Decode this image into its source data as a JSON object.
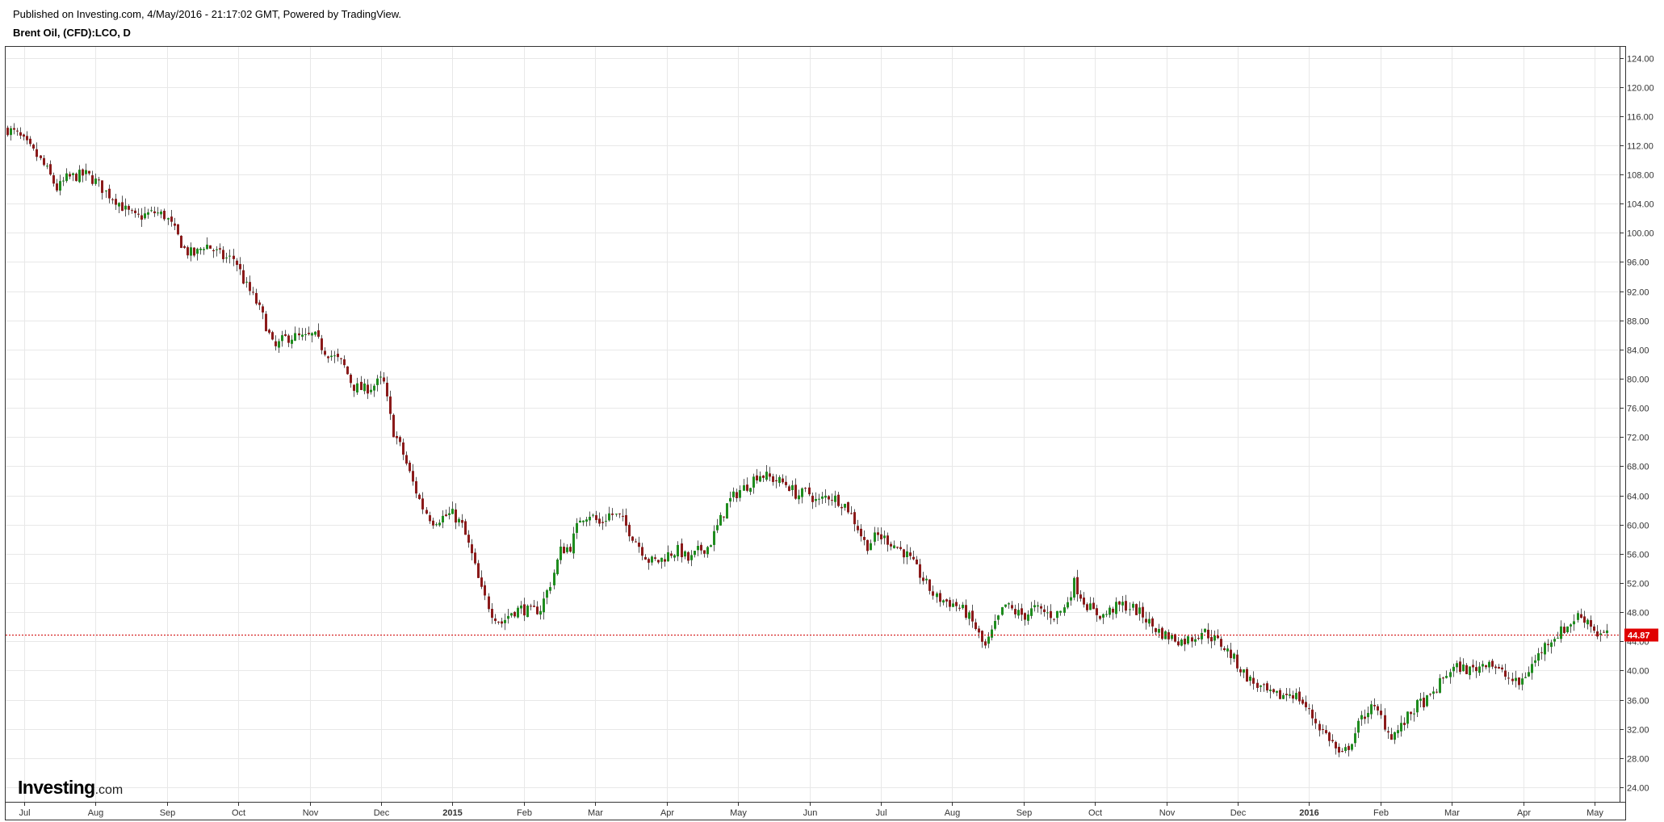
{
  "header": {
    "published": "Published on Investing.com, 4/May/2016 - 21:17:02 GMT, Powered by TradingView.",
    "symbol": "Brent Oil, (CFD):LCO, D"
  },
  "logo": {
    "main": "Investing",
    "suffix": ".com"
  },
  "colors": {
    "up": "#1e8c1e",
    "down": "#8b1a1a",
    "wick": "#555555",
    "last_line": "#d00000",
    "grid": "#e8e8e8"
  },
  "chart_data": {
    "type": "candlestick",
    "title": "Brent Oil, (CFD):LCO, D",
    "ylim": [
      22,
      125.5
    ],
    "y_ticks": [
      "124.00",
      "120.00",
      "116.00",
      "112.00",
      "108.00",
      "104.00",
      "100.00",
      "96.00",
      "92.00",
      "88.00",
      "84.00",
      "80.00",
      "76.00",
      "72.00",
      "68.00",
      "64.00",
      "60.00",
      "56.00",
      "52.00",
      "48.00",
      "44.00",
      "40.00",
      "36.00",
      "32.00",
      "28.00",
      "24.00"
    ],
    "x_ticks": [
      {
        "label": "Jul",
        "bold": false
      },
      {
        "label": "Aug",
        "bold": false
      },
      {
        "label": "Sep",
        "bold": false
      },
      {
        "label": "Oct",
        "bold": false
      },
      {
        "label": "Nov",
        "bold": false
      },
      {
        "label": "Dec",
        "bold": false
      },
      {
        "label": "2015",
        "bold": true
      },
      {
        "label": "Feb",
        "bold": false
      },
      {
        "label": "Mar",
        "bold": false
      },
      {
        "label": "Apr",
        "bold": false
      },
      {
        "label": "May",
        "bold": false
      },
      {
        "label": "Jun",
        "bold": false
      },
      {
        "label": "Jul",
        "bold": false
      },
      {
        "label": "Aug",
        "bold": false
      },
      {
        "label": "Sep",
        "bold": false
      },
      {
        "label": "Oct",
        "bold": false
      },
      {
        "label": "Nov",
        "bold": false
      },
      {
        "label": "Dec",
        "bold": false
      },
      {
        "label": "2016",
        "bold": true
      },
      {
        "label": "Feb",
        "bold": false
      },
      {
        "label": "Mar",
        "bold": false
      },
      {
        "label": "Apr",
        "bold": false
      },
      {
        "label": "May",
        "bold": false
      }
    ],
    "last_price": 44.87,
    "last_price_label": "44.87",
    "close_path": [
      114.2,
      113.5,
      112.0,
      110.5,
      108.5,
      106.0,
      107.5,
      107.8,
      108.0,
      107.0,
      105.5,
      104.5,
      103.0,
      102.0,
      102.5,
      102.8,
      102.3,
      100.0,
      97.5,
      97.0,
      98.5,
      97.5,
      96.5,
      96.5,
      93.0,
      91.0,
      88.0,
      84.0,
      85.5,
      85.8,
      85.5,
      86.0,
      84.0,
      83.0,
      82.0,
      79.0,
      78.5,
      79.0,
      80.0,
      73.0,
      70.0,
      66.0,
      62.5,
      60.5,
      61.0,
      61.5,
      60.0,
      56.0,
      51.0,
      48.0,
      46.5,
      48.0,
      48.5,
      48.0,
      48.5,
      52.0,
      56.5,
      57.0,
      61.0,
      61.5,
      60.0,
      61.5,
      61.0,
      59.0,
      57.0,
      55.0,
      55.0,
      56.0,
      56.5,
      55.0,
      56.5,
      57.0,
      60.0,
      63.0,
      64.5,
      65.5,
      67.0,
      66.5,
      66.0,
      65.5,
      64.0,
      64.5,
      63.0,
      64.0,
      63.5,
      62.5,
      60.0,
      57.0,
      58.5,
      58.0,
      57.0,
      56.0,
      54.0,
      52.0,
      50.0,
      49.5,
      49.0,
      48.0,
      46.0,
      43.0,
      46.0,
      49.0,
      48.0,
      47.5,
      48.5,
      48.0,
      47.5,
      48.5,
      52.0,
      49.5,
      48.0,
      47.5,
      48.5,
      49.0,
      48.5,
      47.5,
      46.0,
      45.0,
      44.5,
      44.0,
      44.5,
      45.5,
      44.5,
      43.5,
      42.0,
      40.0,
      38.5,
      37.5,
      36.5,
      36.5,
      37.0,
      36.0,
      34.0,
      32.0,
      30.5,
      28.0,
      30.0,
      33.0,
      35.0,
      34.0,
      31.0,
      32.0,
      34.0,
      35.5,
      36.0,
      38.0,
      40.0,
      40.5,
      40.0,
      40.5,
      41.5,
      40.0,
      39.0,
      38.0,
      40.0,
      42.0,
      44.0,
      45.0,
      46.0,
      47.5,
      47.0,
      45.0,
      44.87
    ]
  }
}
